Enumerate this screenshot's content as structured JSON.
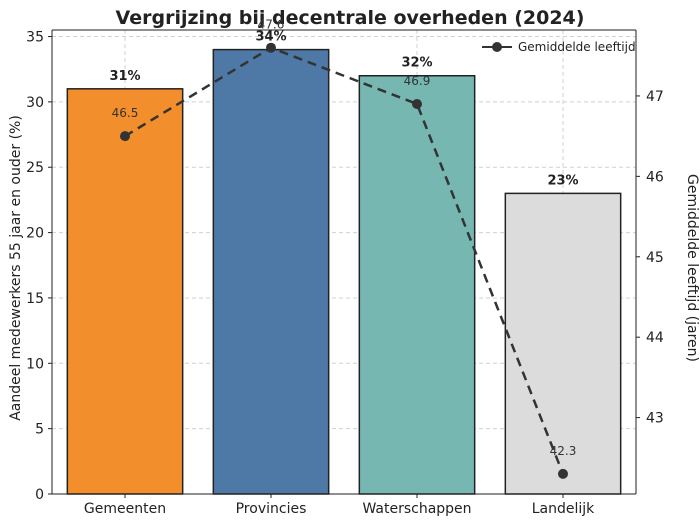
{
  "chart_data": {
    "type": "bar",
    "title": "Vergrijzing bij decentrale overheden (2024)",
    "categories": [
      "Gemeenten",
      "Provincies",
      "Waterschappen",
      "Landelijk"
    ],
    "series": [
      {
        "values": [
          31,
          34,
          32,
          23
        ],
        "value_labels": [
          "31%",
          "34%",
          "32%",
          "23%"
        ],
        "colors": [
          "#f28e2b",
          "#4e79a7",
          "#76b7b2",
          "#dcdcdc"
        ],
        "axis": "left"
      },
      {
        "name": "Gemiddelde leeftijd",
        "type": "line",
        "values": [
          46.5,
          47.6,
          46.9,
          42.3
        ],
        "value_labels": [
          "46.5",
          "47.6",
          "46.9",
          "42.3"
        ],
        "color": "#333333",
        "line_style": "dashed",
        "axis": "right"
      }
    ],
    "ylabel": "Aandeel medewerkers 55 jaar en ouder (%)",
    "ylim": [
      0,
      35.5
    ],
    "yticks": [
      0,
      5,
      10,
      15,
      20,
      25,
      30,
      35
    ],
    "y2label": "Gemiddelde leeftijd (jaren)",
    "y2lim": [
      42.05,
      47.82
    ],
    "y2ticks": [
      43,
      44,
      45,
      46,
      47
    ],
    "grid": true,
    "legend_position": "top-right"
  }
}
